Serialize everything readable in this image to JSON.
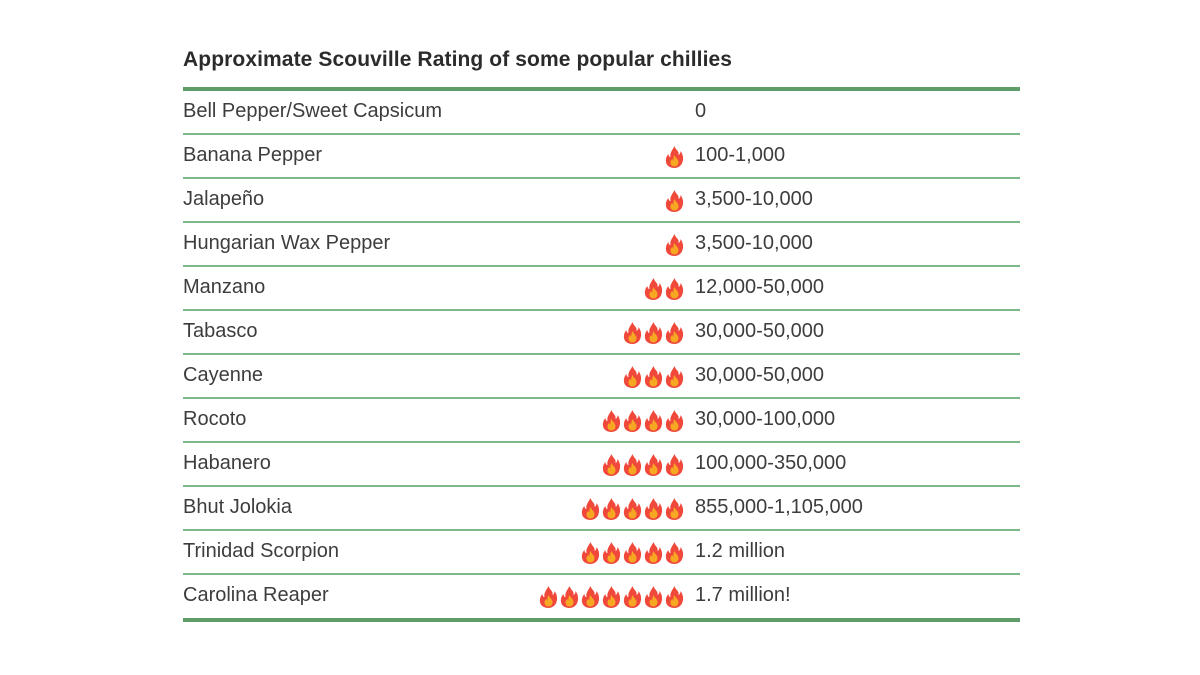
{
  "title": "Approximate Scouville Rating of some popular chillies",
  "colors": {
    "border_thick": "#5e9d69",
    "border_thin": "#7fb98a",
    "fire_outer": "#f0483a",
    "fire_inner": "#f7a823"
  },
  "rows": [
    {
      "name": "Bell Pepper/Sweet Capsicum",
      "fires": 0,
      "value": "0"
    },
    {
      "name": "Banana Pepper",
      "fires": 1,
      "value": "100-1,000"
    },
    {
      "name": "Jalapeño",
      "fires": 1,
      "value": "3,500-10,000"
    },
    {
      "name": "Hungarian Wax Pepper",
      "fires": 1,
      "value": "3,500-10,000"
    },
    {
      "name": "Manzano",
      "fires": 2,
      "value": "12,000-50,000"
    },
    {
      "name": "Tabasco",
      "fires": 3,
      "value": "30,000-50,000"
    },
    {
      "name": "Cayenne",
      "fires": 3,
      "value": "30,000-50,000"
    },
    {
      "name": "Rocoto",
      "fires": 4,
      "value": "30,000-100,000"
    },
    {
      "name": "Habanero",
      "fires": 4,
      "value": "100,000-350,000"
    },
    {
      "name": "Bhut Jolokia",
      "fires": 5,
      "value": "855,000-1,105,000"
    },
    {
      "name": "Trinidad Scorpion",
      "fires": 5,
      "value": "1.2 million"
    },
    {
      "name": "Carolina Reaper",
      "fires": 7,
      "value": "1.7 million!"
    }
  ],
  "icons": {
    "heat": "fire-icon"
  }
}
